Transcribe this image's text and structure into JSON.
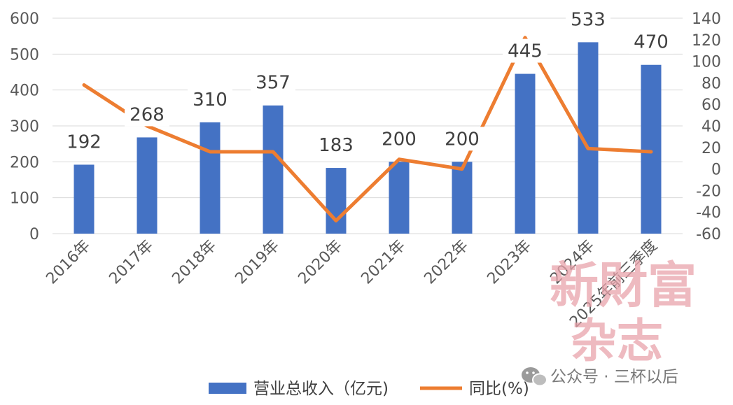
{
  "chart_data": {
    "type": "bar",
    "categories": [
      "2016年",
      "2017年",
      "2018年",
      "2019年",
      "2020年",
      "2021年",
      "2022年",
      "2023年",
      "2024年",
      "2025年前三季度"
    ],
    "series": [
      {
        "name": "营业总收入（亿元)",
        "kind": "bar",
        "axis": "left",
        "color": "#4472C4",
        "values": [
          192,
          268,
          310,
          357,
          183,
          200,
          200,
          445,
          533,
          470
        ],
        "data_labels": [
          "192",
          "268",
          "310",
          "357",
          "183",
          "200",
          "200",
          "445",
          "533",
          "470"
        ]
      },
      {
        "name": "同比(%)",
        "kind": "line",
        "axis": "right",
        "color": "#ED7D31",
        "values": [
          78,
          40,
          16,
          16,
          -48,
          9,
          0,
          122,
          19,
          16
        ]
      }
    ],
    "left_axis": {
      "ylim": [
        0,
        600
      ],
      "ticks": [
        "0",
        "100",
        "200",
        "300",
        "400",
        "500",
        "600"
      ]
    },
    "right_axis": {
      "ylim": [
        -60,
        140
      ],
      "ticks": [
        "-60",
        "-40",
        "-20",
        "0",
        "20",
        "40",
        "60",
        "80",
        "100",
        "120",
        "140"
      ]
    },
    "grid": true,
    "legend_position": "bottom"
  },
  "watermark": {
    "line1": "新財富",
    "line2": "杂志"
  },
  "wechat": {
    "text": "公众号 · 三杯以后"
  }
}
